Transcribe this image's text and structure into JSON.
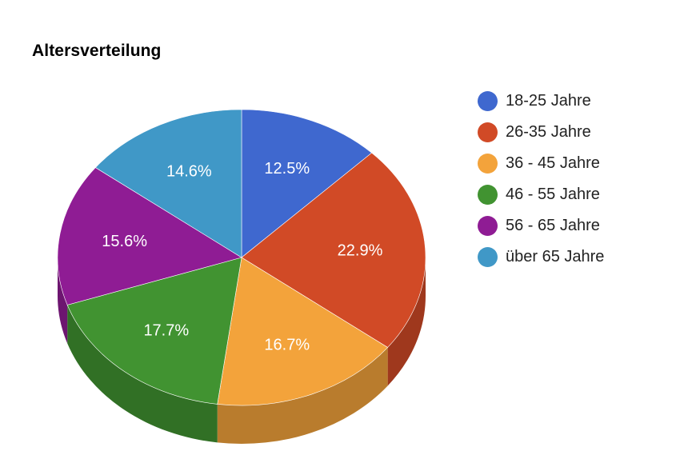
{
  "chart_data": {
    "type": "pie",
    "title": "Altersverteilung",
    "style": "3d",
    "legend_position": "right",
    "categories": [
      "18-25 Jahre",
      "26-35 Jahre",
      "36 - 45 Jahre",
      "46 - 55 Jahre",
      "56 - 65 Jahre",
      "über 65 Jahre"
    ],
    "values": [
      12.5,
      22.9,
      16.7,
      17.7,
      15.6,
      14.6
    ],
    "labels": [
      "12.5%",
      "22.9%",
      "16.7%",
      "17.7%",
      "15.6%",
      "14.6%"
    ],
    "colors": [
      "#3f68cf",
      "#d14a26",
      "#f3a33b",
      "#419331",
      "#8f1c94",
      "#4098c7"
    ]
  }
}
